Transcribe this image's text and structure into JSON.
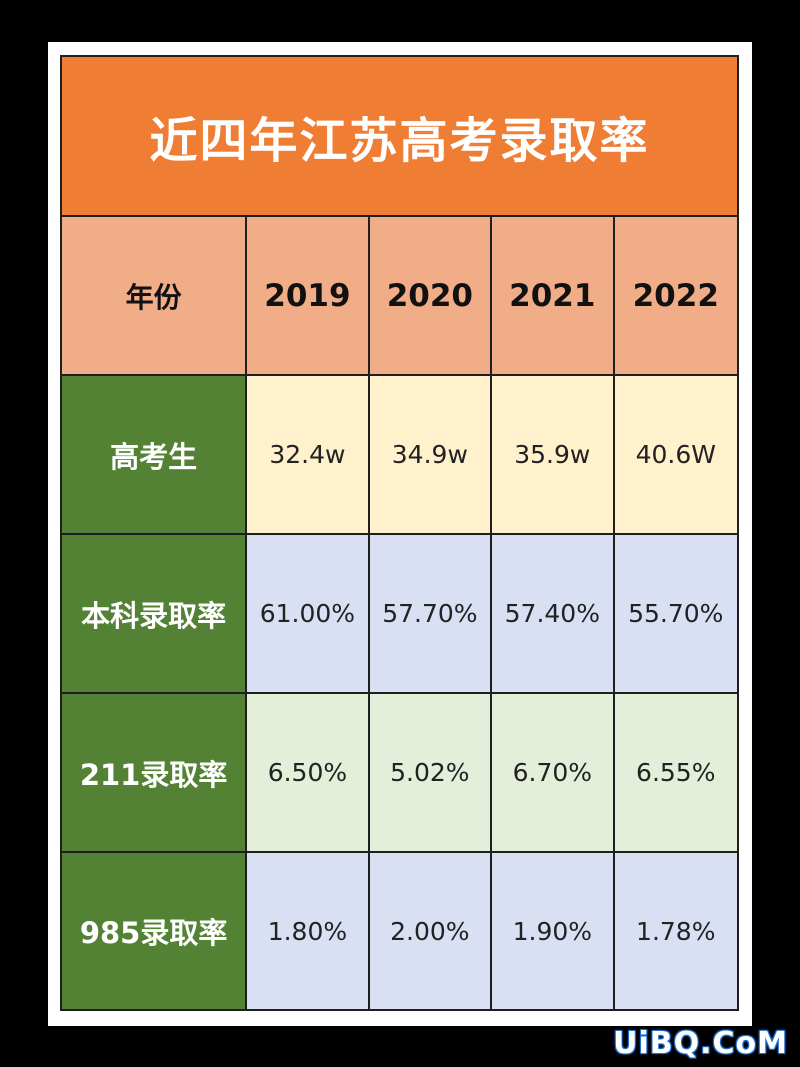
{
  "title": "近四年江苏高考录取率",
  "header": {
    "label": "年份",
    "years": [
      "2019",
      "2020",
      "2021",
      "2022"
    ]
  },
  "rows": [
    {
      "label": "高考生",
      "values": [
        "32.4w",
        "34.9w",
        "35.9w",
        "40.6W"
      ]
    },
    {
      "label": "本科录取率",
      "values": [
        "61.00%",
        "57.70%",
        "57.40%",
        "55.70%"
      ]
    },
    {
      "label": "211录取率",
      "values": [
        "6.50%",
        "5.02%",
        "6.70%",
        "6.55%"
      ]
    },
    {
      "label": "985录取率",
      "values": [
        "1.80%",
        "2.00%",
        "1.90%",
        "1.78%"
      ]
    }
  ],
  "watermark": "UiBQ.CoM",
  "colors": {
    "title_bg": "#ef7d33",
    "header_bg": "#f1ad87",
    "label_bg": "#548235",
    "row_yellow": "#fff1cc",
    "row_blue": "#d9e0f3",
    "row_green": "#e3efd9"
  }
}
